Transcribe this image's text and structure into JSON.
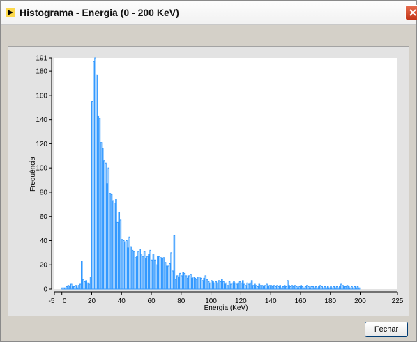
{
  "window": {
    "title": "Histograma - Energia (0 - 200 KeV)",
    "icon": "labview-run-icon",
    "close_icon": "close-icon"
  },
  "buttons": {
    "fechar_label": "Fechar"
  },
  "colors": {
    "bar_stroke": "#3399ff",
    "plot_bg": "#ffffff",
    "panel_bg": "#d4d0c8"
  },
  "chart_data": {
    "type": "bar",
    "xlabel": "Energia (KeV)",
    "ylabel": "Frequência",
    "xlim": [
      -5,
      225
    ],
    "ylim": [
      0,
      191
    ],
    "xticks": [
      "-5",
      "0",
      "20",
      "40",
      "60",
      "80",
      "100",
      "120",
      "140",
      "160",
      "180",
      "200",
      "225"
    ],
    "yticks": [
      "0",
      "20",
      "40",
      "60",
      "80",
      "100",
      "120",
      "140",
      "160",
      "180",
      "191"
    ],
    "grid": false,
    "bin_width": 1,
    "bins": [
      {
        "x": 0,
        "y": 1
      },
      {
        "x": 1,
        "y": 1
      },
      {
        "x": 2,
        "y": 1
      },
      {
        "x": 3,
        "y": 2
      },
      {
        "x": 4,
        "y": 3
      },
      {
        "x": 5,
        "y": 2
      },
      {
        "x": 6,
        "y": 4
      },
      {
        "x": 7,
        "y": 2
      },
      {
        "x": 8,
        "y": 2
      },
      {
        "x": 9,
        "y": 3
      },
      {
        "x": 10,
        "y": 1
      },
      {
        "x": 11,
        "y": 3
      },
      {
        "x": 12,
        "y": 4
      },
      {
        "x": 13,
        "y": 23
      },
      {
        "x": 14,
        "y": 8
      },
      {
        "x": 15,
        "y": 6
      },
      {
        "x": 16,
        "y": 7
      },
      {
        "x": 17,
        "y": 5
      },
      {
        "x": 18,
        "y": 4
      },
      {
        "x": 19,
        "y": 10
      },
      {
        "x": 20,
        "y": 155
      },
      {
        "x": 21,
        "y": 188
      },
      {
        "x": 22,
        "y": 191
      },
      {
        "x": 23,
        "y": 177
      },
      {
        "x": 24,
        "y": 143
      },
      {
        "x": 25,
        "y": 141
      },
      {
        "x": 26,
        "y": 121
      },
      {
        "x": 27,
        "y": 116
      },
      {
        "x": 28,
        "y": 106
      },
      {
        "x": 29,
        "y": 104
      },
      {
        "x": 30,
        "y": 87
      },
      {
        "x": 31,
        "y": 100
      },
      {
        "x": 32,
        "y": 79
      },
      {
        "x": 33,
        "y": 78
      },
      {
        "x": 34,
        "y": 73
      },
      {
        "x": 35,
        "y": 71
      },
      {
        "x": 36,
        "y": 74
      },
      {
        "x": 37,
        "y": 55
      },
      {
        "x": 38,
        "y": 63
      },
      {
        "x": 39,
        "y": 57
      },
      {
        "x": 40,
        "y": 41
      },
      {
        "x": 41,
        "y": 40
      },
      {
        "x": 42,
        "y": 39
      },
      {
        "x": 43,
        "y": 40
      },
      {
        "x": 44,
        "y": 34
      },
      {
        "x": 45,
        "y": 43
      },
      {
        "x": 46,
        "y": 35
      },
      {
        "x": 47,
        "y": 32
      },
      {
        "x": 48,
        "y": 31
      },
      {
        "x": 49,
        "y": 26
      },
      {
        "x": 50,
        "y": 27
      },
      {
        "x": 51,
        "y": 31
      },
      {
        "x": 52,
        "y": 33
      },
      {
        "x": 53,
        "y": 29
      },
      {
        "x": 54,
        "y": 27
      },
      {
        "x": 55,
        "y": 31
      },
      {
        "x": 56,
        "y": 25
      },
      {
        "x": 57,
        "y": 27
      },
      {
        "x": 58,
        "y": 29
      },
      {
        "x": 59,
        "y": 32
      },
      {
        "x": 60,
        "y": 24
      },
      {
        "x": 61,
        "y": 29
      },
      {
        "x": 62,
        "y": 24
      },
      {
        "x": 63,
        "y": 20
      },
      {
        "x": 64,
        "y": 27
      },
      {
        "x": 65,
        "y": 27
      },
      {
        "x": 66,
        "y": 26
      },
      {
        "x": 67,
        "y": 25
      },
      {
        "x": 68,
        "y": 26
      },
      {
        "x": 69,
        "y": 22
      },
      {
        "x": 70,
        "y": 19
      },
      {
        "x": 71,
        "y": 19
      },
      {
        "x": 72,
        "y": 21
      },
      {
        "x": 73,
        "y": 30
      },
      {
        "x": 74,
        "y": 15
      },
      {
        "x": 75,
        "y": 44
      },
      {
        "x": 76,
        "y": 8
      },
      {
        "x": 77,
        "y": 11
      },
      {
        "x": 78,
        "y": 10
      },
      {
        "x": 79,
        "y": 13
      },
      {
        "x": 80,
        "y": 11
      },
      {
        "x": 81,
        "y": 14
      },
      {
        "x": 82,
        "y": 13
      },
      {
        "x": 83,
        "y": 11
      },
      {
        "x": 84,
        "y": 9
      },
      {
        "x": 85,
        "y": 11
      },
      {
        "x": 86,
        "y": 12
      },
      {
        "x": 87,
        "y": 9
      },
      {
        "x": 88,
        "y": 10
      },
      {
        "x": 89,
        "y": 9
      },
      {
        "x": 90,
        "y": 8
      },
      {
        "x": 91,
        "y": 10
      },
      {
        "x": 92,
        "y": 10
      },
      {
        "x": 93,
        "y": 9
      },
      {
        "x": 94,
        "y": 7
      },
      {
        "x": 95,
        "y": 9
      },
      {
        "x": 96,
        "y": 11
      },
      {
        "x": 97,
        "y": 8
      },
      {
        "x": 98,
        "y": 6
      },
      {
        "x": 99,
        "y": 5
      },
      {
        "x": 100,
        "y": 7
      },
      {
        "x": 101,
        "y": 6
      },
      {
        "x": 102,
        "y": 5
      },
      {
        "x": 103,
        "y": 6
      },
      {
        "x": 104,
        "y": 5
      },
      {
        "x": 105,
        "y": 7
      },
      {
        "x": 106,
        "y": 6
      },
      {
        "x": 107,
        "y": 8
      },
      {
        "x": 108,
        "y": 6
      },
      {
        "x": 109,
        "y": 4
      },
      {
        "x": 110,
        "y": 5
      },
      {
        "x": 111,
        "y": 3
      },
      {
        "x": 112,
        "y": 6
      },
      {
        "x": 113,
        "y": 4
      },
      {
        "x": 114,
        "y": 5
      },
      {
        "x": 115,
        "y": 6
      },
      {
        "x": 116,
        "y": 5
      },
      {
        "x": 117,
        "y": 4
      },
      {
        "x": 118,
        "y": 5
      },
      {
        "x": 119,
        "y": 6
      },
      {
        "x": 120,
        "y": 5
      },
      {
        "x": 121,
        "y": 7
      },
      {
        "x": 122,
        "y": 4
      },
      {
        "x": 123,
        "y": 3
      },
      {
        "x": 124,
        "y": 5
      },
      {
        "x": 125,
        "y": 4
      },
      {
        "x": 126,
        "y": 5
      },
      {
        "x": 127,
        "y": 7
      },
      {
        "x": 128,
        "y": 3
      },
      {
        "x": 129,
        "y": 4
      },
      {
        "x": 130,
        "y": 3
      },
      {
        "x": 131,
        "y": 2
      },
      {
        "x": 132,
        "y": 4
      },
      {
        "x": 133,
        "y": 3
      },
      {
        "x": 134,
        "y": 3
      },
      {
        "x": 135,
        "y": 2
      },
      {
        "x": 136,
        "y": 3
      },
      {
        "x": 137,
        "y": 4
      },
      {
        "x": 138,
        "y": 2
      },
      {
        "x": 139,
        "y": 3
      },
      {
        "x": 140,
        "y": 3
      },
      {
        "x": 141,
        "y": 2
      },
      {
        "x": 142,
        "y": 3
      },
      {
        "x": 143,
        "y": 2
      },
      {
        "x": 144,
        "y": 3
      },
      {
        "x": 145,
        "y": 2
      },
      {
        "x": 146,
        "y": 3
      },
      {
        "x": 147,
        "y": 1
      },
      {
        "x": 148,
        "y": 2
      },
      {
        "x": 149,
        "y": 3
      },
      {
        "x": 150,
        "y": 2
      },
      {
        "x": 151,
        "y": 7
      },
      {
        "x": 152,
        "y": 3
      },
      {
        "x": 153,
        "y": 2
      },
      {
        "x": 154,
        "y": 3
      },
      {
        "x": 155,
        "y": 2
      },
      {
        "x": 156,
        "y": 3
      },
      {
        "x": 157,
        "y": 2
      },
      {
        "x": 158,
        "y": 1
      },
      {
        "x": 159,
        "y": 2
      },
      {
        "x": 160,
        "y": 3
      },
      {
        "x": 161,
        "y": 2
      },
      {
        "x": 162,
        "y": 1
      },
      {
        "x": 163,
        "y": 2
      },
      {
        "x": 164,
        "y": 3
      },
      {
        "x": 165,
        "y": 2
      },
      {
        "x": 166,
        "y": 1
      },
      {
        "x": 167,
        "y": 2
      },
      {
        "x": 168,
        "y": 2
      },
      {
        "x": 169,
        "y": 1
      },
      {
        "x": 170,
        "y": 2
      },
      {
        "x": 171,
        "y": 1
      },
      {
        "x": 172,
        "y": 2
      },
      {
        "x": 173,
        "y": 3
      },
      {
        "x": 174,
        "y": 2
      },
      {
        "x": 175,
        "y": 1
      },
      {
        "x": 176,
        "y": 2
      },
      {
        "x": 177,
        "y": 1
      },
      {
        "x": 178,
        "y": 2
      },
      {
        "x": 179,
        "y": 1
      },
      {
        "x": 180,
        "y": 2
      },
      {
        "x": 181,
        "y": 1
      },
      {
        "x": 182,
        "y": 2
      },
      {
        "x": 183,
        "y": 1
      },
      {
        "x": 184,
        "y": 2
      },
      {
        "x": 185,
        "y": 1
      },
      {
        "x": 186,
        "y": 2
      },
      {
        "x": 187,
        "y": 4
      },
      {
        "x": 188,
        "y": 3
      },
      {
        "x": 189,
        "y": 2
      },
      {
        "x": 190,
        "y": 2
      },
      {
        "x": 191,
        "y": 3
      },
      {
        "x": 192,
        "y": 2
      },
      {
        "x": 193,
        "y": 1
      },
      {
        "x": 194,
        "y": 2
      },
      {
        "x": 195,
        "y": 1
      },
      {
        "x": 196,
        "y": 2
      },
      {
        "x": 197,
        "y": 1
      },
      {
        "x": 198,
        "y": 2
      },
      {
        "x": 199,
        "y": 1
      }
    ]
  }
}
